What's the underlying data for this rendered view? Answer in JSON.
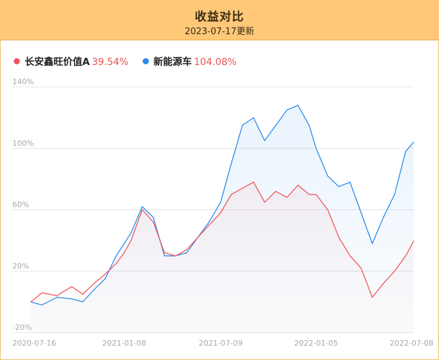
{
  "header": {
    "title": "收益对比",
    "subtitle": "2023-07-17更新"
  },
  "legend": [
    {
      "name": "长安鑫旺价值A",
      "value": "39.54%",
      "color": "#f0555a"
    },
    {
      "name": "新能源车",
      "value": "104.08%",
      "color": "#2a8be8"
    }
  ],
  "chart_data": {
    "type": "line",
    "y_ticks": [
      "140%",
      "100%",
      "60%",
      "20%",
      "-20%"
    ],
    "x_ticks": [
      "2020-07-16",
      "2021-01-08",
      "2021-07-09",
      "2022-01-05",
      "2022-07-08"
    ],
    "ylim": [
      -20,
      140
    ],
    "grid": true,
    "legend_position": "top-left",
    "series": [
      {
        "name": "长安鑫旺价值A",
        "color": "#f0555a",
        "x": [
          "2020-07-16",
          "2020-08-06",
          "2020-09-03",
          "2020-10-01",
          "2020-10-22",
          "2020-11-12",
          "2020-12-03",
          "2020-12-24",
          "2021-01-08",
          "2021-01-21",
          "2021-02-11",
          "2021-03-04",
          "2021-03-25",
          "2021-04-15",
          "2021-05-06",
          "2021-05-27",
          "2021-06-17",
          "2021-07-09",
          "2021-07-29",
          "2021-08-19",
          "2021-09-09",
          "2021-09-30",
          "2021-10-21",
          "2021-11-11",
          "2021-12-02",
          "2021-12-23",
          "2022-01-05",
          "2022-01-27",
          "2022-02-17",
          "2022-03-10",
          "2022-03-31",
          "2022-04-21",
          "2022-05-12",
          "2022-06-02",
          "2022-06-23",
          "2022-07-08"
        ],
        "values": [
          0,
          6,
          4,
          10,
          5,
          12,
          18,
          25,
          32,
          40,
          60,
          52,
          32,
          30,
          34,
          42,
          50,
          58,
          70,
          74,
          78,
          65,
          72,
          68,
          76,
          70,
          70,
          60,
          42,
          30,
          22,
          3,
          12,
          20,
          30,
          39.54
        ]
      },
      {
        "name": "新能源车",
        "color": "#2a8be8",
        "x": [
          "2020-07-16",
          "2020-08-06",
          "2020-09-03",
          "2020-10-01",
          "2020-10-22",
          "2020-11-12",
          "2020-12-03",
          "2020-12-24",
          "2021-01-08",
          "2021-01-21",
          "2021-02-11",
          "2021-03-04",
          "2021-03-25",
          "2021-04-15",
          "2021-05-06",
          "2021-05-27",
          "2021-06-17",
          "2021-07-09",
          "2021-07-29",
          "2021-08-19",
          "2021-09-09",
          "2021-09-30",
          "2021-10-21",
          "2021-11-11",
          "2021-12-02",
          "2021-12-23",
          "2022-01-05",
          "2022-01-27",
          "2022-02-17",
          "2022-03-10",
          "2022-03-31",
          "2022-04-21",
          "2022-05-12",
          "2022-06-02",
          "2022-06-23",
          "2022-07-08"
        ],
        "values": [
          0,
          -2,
          3,
          2,
          0,
          8,
          15,
          30,
          38,
          45,
          62,
          55,
          30,
          30,
          32,
          42,
          52,
          65,
          90,
          115,
          120,
          105,
          115,
          125,
          128,
          115,
          100,
          82,
          75,
          78,
          58,
          38,
          55,
          70,
          98,
          104.08
        ]
      }
    ]
  }
}
